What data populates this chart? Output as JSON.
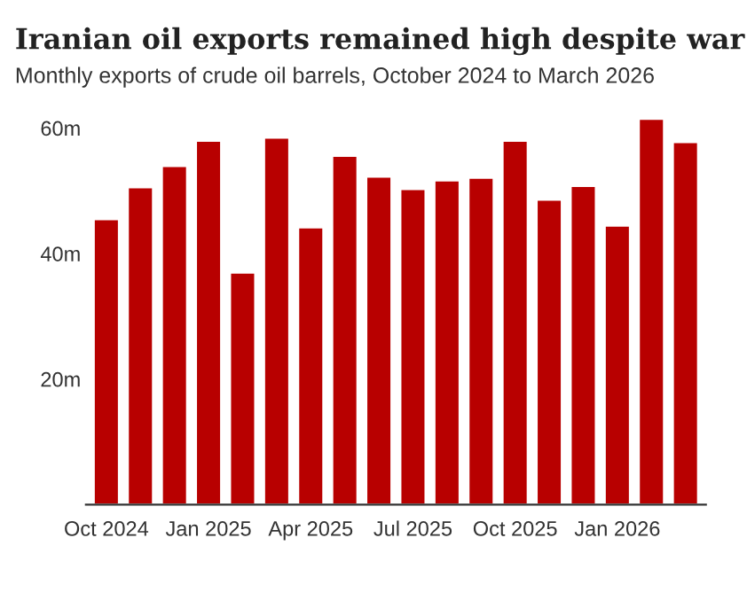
{
  "chart_data": {
    "type": "bar",
    "title": "Iranian oil exports remained high despite war",
    "subtitle": "Monthly exports of crude oil barrels, October 2024 to March 2026",
    "categories": [
      "Oct 2024",
      null,
      null,
      "Jan 2025",
      null,
      null,
      "Apr 2025",
      null,
      null,
      "Jul 2025",
      null,
      null,
      "Oct 2025",
      null,
      null,
      "Jan 2026",
      null,
      null
    ],
    "series": [
      {
        "color": "#b80000",
        "values": [
          45.5,
          50.6,
          54.0,
          58.0,
          37.0,
          58.5,
          44.2,
          55.6,
          52.3,
          50.3,
          51.7,
          52.1,
          58.0,
          48.6,
          50.8,
          44.5,
          61.5,
          57.8
        ]
      }
    ],
    "ylim": [
      0,
      62
    ],
    "yticks": [
      {
        "value": 20,
        "label": "20m"
      },
      {
        "value": 40,
        "label": "40m"
      },
      {
        "value": 60,
        "label": "60m"
      }
    ],
    "grid": false,
    "legend": false
  }
}
